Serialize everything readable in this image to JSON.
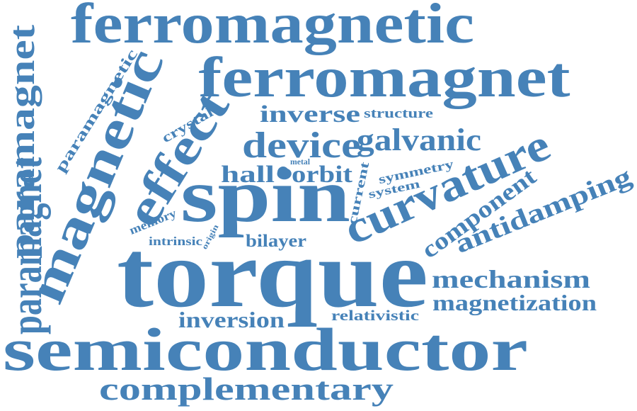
{
  "colors": {
    "word": "#4682b8",
    "background": "#ffffff"
  },
  "words": {
    "ferromagnetic": "ferromagnetic",
    "ferromagnet": "ferromagnet",
    "paramagnet_left": "paramagnet",
    "paramagnetic": "paramagnetic",
    "magnetic": "magnetic",
    "effect": "effect",
    "crystal": "crystal",
    "inverse": "inverse",
    "structure": "structure",
    "device": "device",
    "galvanic": "galvanic",
    "hall": "hall",
    "metal": "metal",
    "orbit": "orbit",
    "current": "current",
    "symmetry": "symmetry",
    "system": "system",
    "spin": "spin",
    "curvature": "curvature",
    "memory": "memory",
    "intrinsic": "intrinsic",
    "origin": "origin",
    "bilayer": "bilayer",
    "component": "component",
    "antidamping": "antidamping",
    "paramagnet_bottom": "paramagnet",
    "torque": "torque",
    "mechanism": "mechanism",
    "magnetization": "magnetization",
    "inversion": "inversion",
    "relativistic": "relativistic",
    "semiconductor": "semiconductor",
    "complementary": "complementary"
  }
}
